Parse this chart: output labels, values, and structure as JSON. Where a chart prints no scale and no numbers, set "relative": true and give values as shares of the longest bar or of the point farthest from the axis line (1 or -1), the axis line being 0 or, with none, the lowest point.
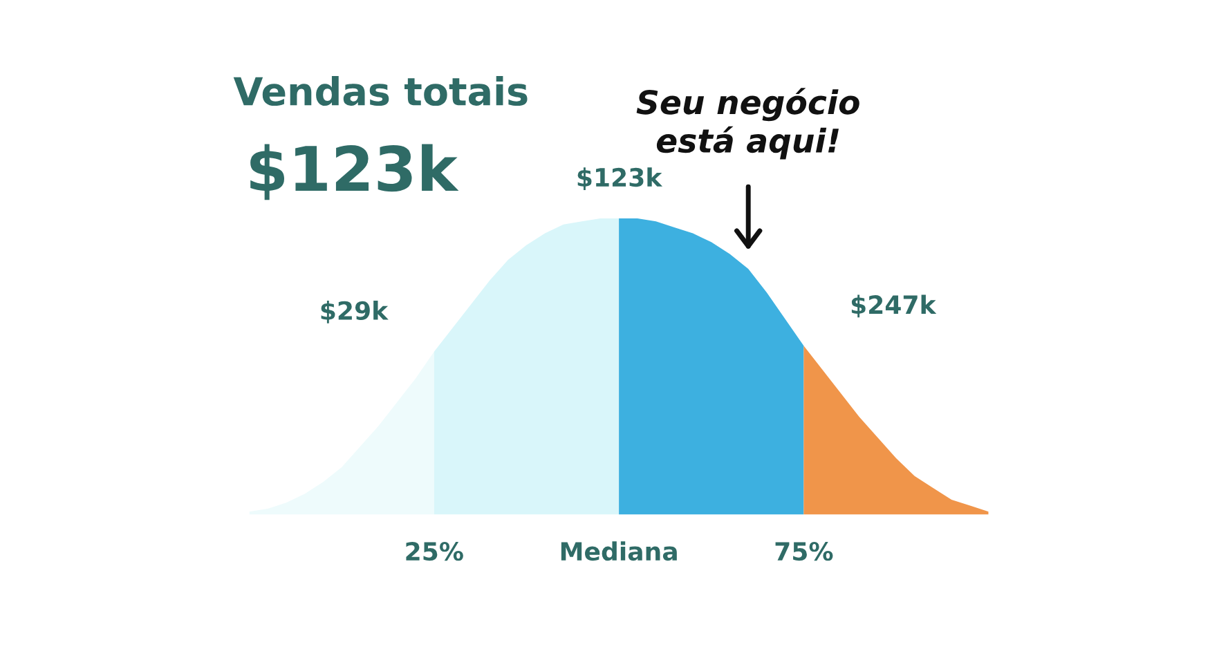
{
  "chart_data": {
    "type": "area",
    "title": "Vendas totais",
    "subtitle": "$123k",
    "relative": true,
    "categories": [
      null,
      null,
      null,
      null,
      null,
      null,
      null,
      null,
      null,
      null,
      "25%",
      null,
      null,
      null,
      null,
      null,
      null,
      null,
      null,
      null,
      "Mediana",
      null,
      null,
      null,
      null,
      null,
      null,
      null,
      null,
      null,
      "75%",
      null,
      null,
      null,
      null,
      null,
      null,
      null,
      null,
      null,
      null
    ],
    "series": [
      {
        "color": "#eefbfc",
        "values": [
          0.01,
          0.02,
          0.04,
          0.07,
          0.11,
          0.16,
          0.23,
          0.3,
          0.38,
          0.46,
          0.55,
          null,
          null,
          null,
          null,
          null,
          null,
          null,
          null,
          null,
          null,
          null,
          null,
          null,
          null,
          null,
          null,
          null,
          null,
          null,
          null,
          null,
          null,
          null,
          null,
          null,
          null,
          null,
          null,
          null,
          null
        ]
      },
      {
        "color": "#d9f6fa",
        "values": [
          null,
          null,
          null,
          null,
          null,
          null,
          null,
          null,
          null,
          null,
          0.55,
          0.63,
          0.71,
          0.79,
          0.86,
          0.91,
          0.95,
          0.98,
          0.99,
          1.0,
          1.0,
          null,
          null,
          null,
          null,
          null,
          null,
          null,
          null,
          null,
          null,
          null,
          null,
          null,
          null,
          null,
          null,
          null,
          null,
          null,
          null
        ]
      },
      {
        "color": "#3db0e0",
        "values": [
          null,
          null,
          null,
          null,
          null,
          null,
          null,
          null,
          null,
          null,
          null,
          null,
          null,
          null,
          null,
          null,
          null,
          null,
          null,
          null,
          1.0,
          1.0,
          0.99,
          0.97,
          0.95,
          0.92,
          0.88,
          0.83,
          0.75,
          0.66,
          0.57,
          null,
          null,
          null,
          null,
          null,
          null,
          null,
          null,
          null,
          null
        ]
      },
      {
        "color": "#f0954a",
        "values": [
          null,
          null,
          null,
          null,
          null,
          null,
          null,
          null,
          null,
          null,
          null,
          null,
          null,
          null,
          null,
          null,
          null,
          null,
          null,
          null,
          null,
          null,
          null,
          null,
          null,
          null,
          null,
          null,
          null,
          null,
          0.57,
          0.49,
          0.41,
          0.33,
          0.26,
          0.19,
          0.13,
          0.09,
          0.05,
          0.03,
          0.01
        ]
      }
    ],
    "annotations": [
      {
        "text": "$29k",
        "x": "25%",
        "y": 0.55
      },
      {
        "text": "$123k",
        "x": "Mediana",
        "y": 1.0
      },
      {
        "text": "$247k",
        "x": "75%",
        "y": 0.57
      },
      "Seu negócio\nestá aqui!"
    ]
  }
}
